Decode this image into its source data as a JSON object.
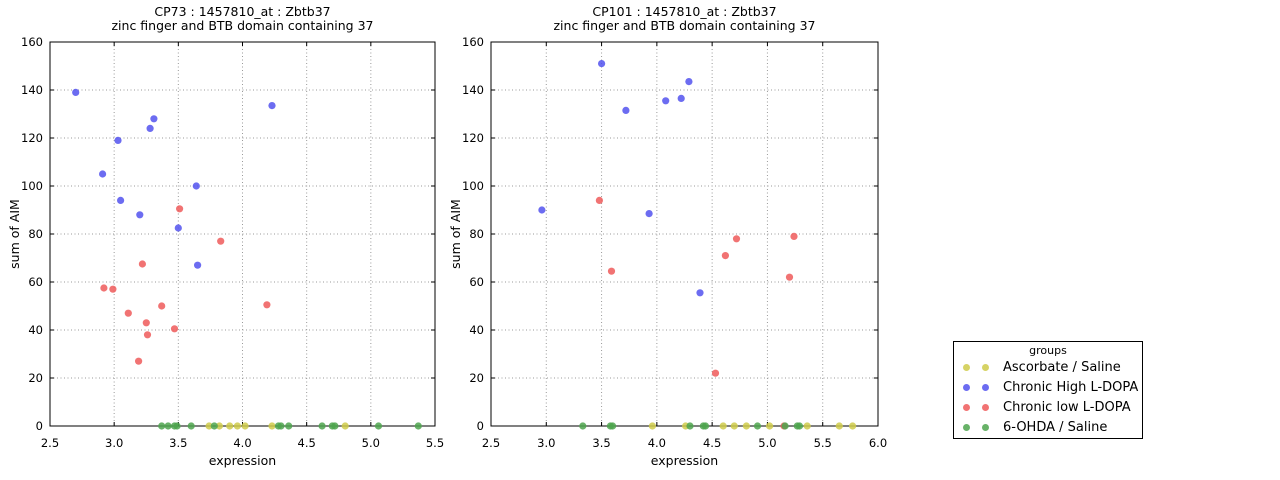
{
  "figure": {
    "background": "#ffffff"
  },
  "legend": {
    "title": "groups",
    "position": "right-center"
  },
  "groups": [
    {
      "name": "Ascorbate / Saline",
      "color": "#cfcb4a"
    },
    {
      "name": "Chronic High L-DOPA",
      "color": "#5252ef"
    },
    {
      "name": "Chronic low L-DOPA",
      "color": "#ef5a5a"
    },
    {
      "name": "6-OHDA / Saline",
      "color": "#4ea44e"
    }
  ],
  "chart_data": [
    {
      "type": "scatter",
      "title": "CP73 : 1457810_at : Zbtb37",
      "subtitle": "zinc finger and BTB domain containing 37",
      "xlabel": "expression",
      "ylabel": "sum of AIM",
      "xlim": [
        2.5,
        5.5
      ],
      "ylim": [
        0,
        160
      ],
      "xticks": [
        2.5,
        3.0,
        3.5,
        4.0,
        4.5,
        5.0,
        5.5
      ],
      "yticks": [
        0,
        20,
        40,
        60,
        80,
        100,
        120,
        140,
        160
      ],
      "grid": true,
      "series": [
        {
          "name": "Ascorbate / Saline",
          "points": [
            [
              3.74,
              0
            ],
            [
              3.82,
              0
            ],
            [
              3.9,
              0
            ],
            [
              3.96,
              0
            ],
            [
              4.02,
              0
            ],
            [
              4.23,
              0
            ],
            [
              4.8,
              0
            ]
          ]
        },
        {
          "name": "Chronic High L-DOPA",
          "points": [
            [
              2.7,
              139
            ],
            [
              2.91,
              105
            ],
            [
              3.03,
              119
            ],
            [
              3.05,
              94
            ],
            [
              3.2,
              88
            ],
            [
              3.28,
              124
            ],
            [
              3.31,
              128
            ],
            [
              3.5,
              82.5
            ],
            [
              3.64,
              100
            ],
            [
              3.65,
              67
            ],
            [
              4.23,
              133.5
            ]
          ]
        },
        {
          "name": "Chronic low L-DOPA",
          "points": [
            [
              2.92,
              57.5
            ],
            [
              2.99,
              57
            ],
            [
              3.11,
              47
            ],
            [
              3.19,
              27
            ],
            [
              3.22,
              67.5
            ],
            [
              3.25,
              43
            ],
            [
              3.26,
              38
            ],
            [
              3.37,
              50
            ],
            [
              3.47,
              40.5
            ],
            [
              3.51,
              90.5
            ],
            [
              3.83,
              77
            ],
            [
              4.19,
              50.5
            ]
          ]
        },
        {
          "name": "6-OHDA / Saline",
          "points": [
            [
              3.37,
              0
            ],
            [
              3.42,
              0
            ],
            [
              3.47,
              0
            ],
            [
              3.49,
              0
            ],
            [
              3.6,
              0
            ],
            [
              3.78,
              0
            ],
            [
              4.28,
              0
            ],
            [
              4.3,
              0
            ],
            [
              4.36,
              0
            ],
            [
              4.62,
              0
            ],
            [
              4.7,
              0
            ],
            [
              4.72,
              0
            ],
            [
              5.06,
              0
            ],
            [
              5.37,
              0
            ]
          ]
        }
      ]
    },
    {
      "type": "scatter",
      "title": "CP101 : 1457810_at : Zbtb37",
      "subtitle": "zinc finger and BTB domain containing 37",
      "xlabel": "expression",
      "ylabel": "sum of AIM",
      "xlim": [
        2.5,
        6.0
      ],
      "ylim": [
        0,
        160
      ],
      "xticks": [
        2.5,
        3.0,
        3.5,
        4.0,
        4.5,
        5.0,
        5.5,
        6.0
      ],
      "yticks": [
        0,
        20,
        40,
        60,
        80,
        100,
        120,
        140,
        160
      ],
      "grid": true,
      "series": [
        {
          "name": "Ascorbate / Saline",
          "points": [
            [
              3.96,
              0
            ],
            [
              4.26,
              0
            ],
            [
              4.6,
              0
            ],
            [
              4.7,
              0
            ],
            [
              4.81,
              0
            ],
            [
              5.02,
              0
            ],
            [
              5.36,
              0
            ],
            [
              5.65,
              0
            ],
            [
              5.77,
              0
            ]
          ]
        },
        {
          "name": "Chronic High L-DOPA",
          "points": [
            [
              2.96,
              90
            ],
            [
              3.5,
              151
            ],
            [
              3.72,
              131.5
            ],
            [
              3.93,
              88.5
            ],
            [
              4.08,
              135.5
            ],
            [
              4.22,
              136.5
            ],
            [
              4.29,
              143.5
            ],
            [
              4.39,
              55.5
            ]
          ]
        },
        {
          "name": "Chronic low L-DOPA",
          "points": [
            [
              3.48,
              94
            ],
            [
              3.59,
              64.5
            ],
            [
              4.53,
              22
            ],
            [
              4.62,
              71
            ],
            [
              4.72,
              78
            ],
            [
              5.15,
              0
            ],
            [
              5.2,
              62
            ],
            [
              5.24,
              79
            ]
          ]
        },
        {
          "name": "6-OHDA / Saline",
          "points": [
            [
              3.33,
              0
            ],
            [
              3.58,
              0
            ],
            [
              3.6,
              0
            ],
            [
              4.3,
              0
            ],
            [
              4.42,
              0
            ],
            [
              4.44,
              0
            ],
            [
              4.91,
              0
            ],
            [
              5.16,
              0
            ],
            [
              5.27,
              0
            ],
            [
              5.29,
              0
            ]
          ]
        }
      ]
    }
  ]
}
